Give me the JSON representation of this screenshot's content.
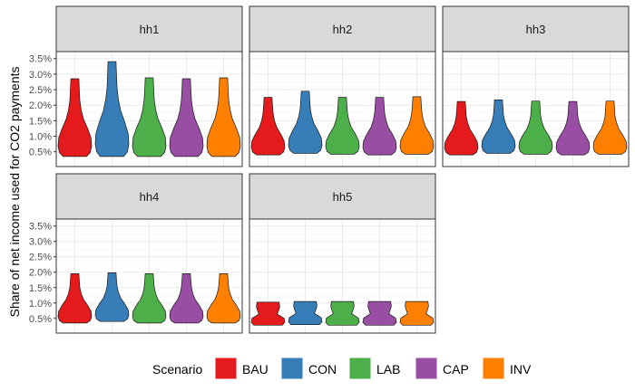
{
  "chart_data": {
    "type": "violin",
    "title": "",
    "xlabel": "",
    "ylabel": "Share of net income used for CO2 payments",
    "y_ticks": [
      "0.5%",
      "1.0%",
      "1.5%",
      "2.0%",
      "2.5%",
      "3.0%",
      "3.5%"
    ],
    "ylim": [
      0.2,
      3.55
    ],
    "y_unit": "percent",
    "grid": true,
    "legend": {
      "title": "Scenario",
      "position": "bottom"
    },
    "categories": [
      "BAU",
      "CON",
      "LAB",
      "CAP",
      "INV"
    ],
    "colors": {
      "BAU": "#E41A1C",
      "CON": "#377EB8",
      "LAB": "#4DAF4A",
      "CAP": "#984EA3",
      "INV": "#FF7F00"
    },
    "facets": [
      {
        "name": "hh1",
        "violins": [
          {
            "scenario": "BAU",
            "min": 0.35,
            "max": 2.85
          },
          {
            "scenario": "CON",
            "min": 0.35,
            "max": 3.4
          },
          {
            "scenario": "LAB",
            "min": 0.35,
            "max": 2.88
          },
          {
            "scenario": "CAP",
            "min": 0.35,
            "max": 2.85
          },
          {
            "scenario": "INV",
            "min": 0.35,
            "max": 2.88
          }
        ]
      },
      {
        "name": "hh2",
        "violins": [
          {
            "scenario": "BAU",
            "min": 0.4,
            "max": 2.25
          },
          {
            "scenario": "CON",
            "min": 0.45,
            "max": 2.45
          },
          {
            "scenario": "LAB",
            "min": 0.42,
            "max": 2.25
          },
          {
            "scenario": "CAP",
            "min": 0.4,
            "max": 2.25
          },
          {
            "scenario": "INV",
            "min": 0.42,
            "max": 2.27
          }
        ]
      },
      {
        "name": "hh3",
        "violins": [
          {
            "scenario": "BAU",
            "min": 0.4,
            "max": 2.12
          },
          {
            "scenario": "CON",
            "min": 0.45,
            "max": 2.17
          },
          {
            "scenario": "LAB",
            "min": 0.42,
            "max": 2.13
          },
          {
            "scenario": "CAP",
            "min": 0.4,
            "max": 2.12
          },
          {
            "scenario": "INV",
            "min": 0.42,
            "max": 2.13
          }
        ]
      },
      {
        "name": "hh4",
        "violins": [
          {
            "scenario": "BAU",
            "min": 0.35,
            "max": 1.95
          },
          {
            "scenario": "CON",
            "min": 0.4,
            "max": 1.98
          },
          {
            "scenario": "LAB",
            "min": 0.35,
            "max": 1.95
          },
          {
            "scenario": "CAP",
            "min": 0.35,
            "max": 1.95
          },
          {
            "scenario": "INV",
            "min": 0.35,
            "max": 1.95
          }
        ]
      },
      {
        "name": "hh5",
        "violins": [
          {
            "scenario": "BAU",
            "min": 0.28,
            "max": 1.03
          },
          {
            "scenario": "CON",
            "min": 0.3,
            "max": 1.05
          },
          {
            "scenario": "LAB",
            "min": 0.28,
            "max": 1.05
          },
          {
            "scenario": "CAP",
            "min": 0.28,
            "max": 1.05
          },
          {
            "scenario": "INV",
            "min": 0.28,
            "max": 1.05
          }
        ]
      }
    ]
  }
}
